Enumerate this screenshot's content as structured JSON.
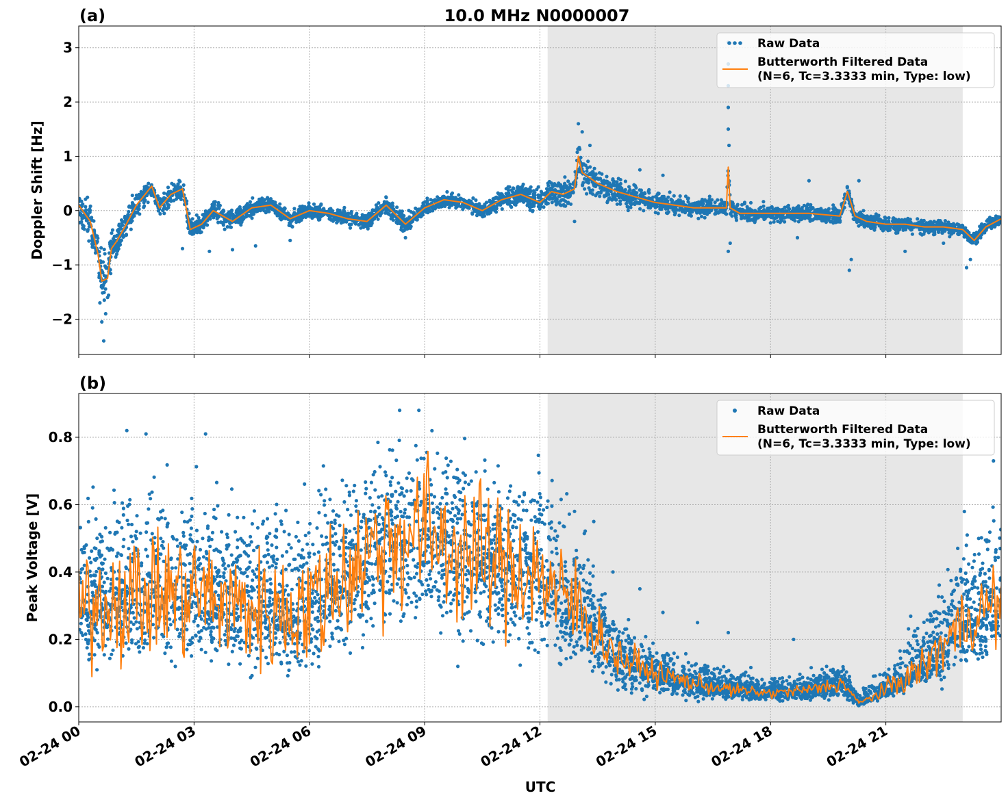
{
  "figure": {
    "title": "10.0 MHz N0000007",
    "xlabel": "UTC"
  },
  "chart_data": [
    {
      "type": "scatter",
      "panel_label": "(a)",
      "ylabel": "Doppler Shift [Hz]",
      "ylim": [
        -2.65,
        3.4
      ],
      "yticks": [
        -2,
        -1,
        0,
        1,
        2,
        3
      ],
      "ytick_labels": [
        "−2",
        "−1",
        "0",
        "1",
        "2",
        "3"
      ],
      "xlim_hours": [
        0,
        24
      ],
      "xtick_labels": [],
      "shaded_interval_hours": [
        12.2,
        23.0
      ],
      "grid": true,
      "legend_position": "upper-right",
      "legend": [
        "Raw Data",
        "Butterworth Filtered Data",
        "(N=6, Tc=3.3333 min, Type: low)"
      ],
      "series": [
        {
          "name": "Raw Data",
          "kind": "scatter",
          "color": "#1f77b4",
          "spread_hz": [
            [
              0,
              0.35
            ],
            [
              0.5,
              0.5
            ],
            [
              0.7,
              0.6
            ],
            [
              1,
              0.4
            ],
            [
              1.5,
              0.25
            ],
            [
              2,
              0.22
            ],
            [
              3,
              0.25
            ],
            [
              4,
              0.2
            ],
            [
              6,
              0.15
            ],
            [
              8,
              0.18
            ],
            [
              10,
              0.15
            ],
            [
              12,
              0.25
            ],
            [
              13,
              0.35
            ],
            [
              14,
              0.3
            ],
            [
              15,
              0.22
            ],
            [
              17,
              0.18
            ],
            [
              20,
              0.18
            ],
            [
              22,
              0.17
            ],
            [
              24,
              0.15
            ]
          ],
          "outliers": [
            [
              0.65,
              -2.4
            ],
            [
              0.6,
              -2.05
            ],
            [
              0.7,
              -1.9
            ],
            [
              0.55,
              -1.7
            ],
            [
              0.75,
              -1.6
            ],
            [
              2.7,
              -0.7
            ],
            [
              3.4,
              -0.75
            ],
            [
              4.0,
              -0.72
            ],
            [
              4.6,
              -0.65
            ],
            [
              5.5,
              -0.55
            ],
            [
              8.5,
              -0.5
            ],
            [
              12.9,
              -0.2
            ],
            [
              13.0,
              1.6
            ],
            [
              13.1,
              1.45
            ],
            [
              13.3,
              1.2
            ],
            [
              16.9,
              3.1
            ],
            [
              16.9,
              2.7
            ],
            [
              16.9,
              2.3
            ],
            [
              16.9,
              1.9
            ],
            [
              16.9,
              1.5
            ],
            [
              16.92,
              1.2
            ],
            [
              16.9,
              -0.75
            ],
            [
              16.95,
              -0.6
            ],
            [
              18.7,
              -0.5
            ],
            [
              20.05,
              -1.1
            ],
            [
              20.1,
              -0.9
            ],
            [
              20.3,
              0.55
            ],
            [
              21.5,
              -0.75
            ],
            [
              22.5,
              -0.6
            ],
            [
              23.1,
              -1.05
            ],
            [
              23.2,
              -0.9
            ],
            [
              15.2,
              0.65
            ],
            [
              14.6,
              0.75
            ],
            [
              19.0,
              0.55
            ]
          ]
        },
        {
          "name": "Butterworth Filtered Data",
          "kind": "line",
          "color": "#ff7f0e",
          "x_hours": [
            0,
            0.3,
            0.5,
            0.6,
            0.75,
            0.85,
            1.0,
            1.2,
            1.5,
            1.9,
            2.1,
            2.4,
            2.7,
            2.9,
            3.2,
            3.5,
            4.0,
            4.5,
            5.0,
            5.5,
            6.0,
            6.5,
            7.0,
            7.5,
            8.0,
            8.5,
            9.0,
            9.5,
            10.0,
            10.5,
            11.0,
            11.5,
            12.0,
            12.3,
            12.6,
            12.9,
            13.0,
            13.1,
            13.3,
            13.5,
            14.0,
            14.5,
            15.0,
            15.5,
            16.0,
            16.5,
            16.85,
            16.9,
            16.95,
            17.2,
            18.0,
            19.0,
            19.8,
            20.0,
            20.2,
            20.5,
            21.0,
            21.5,
            22.0,
            22.5,
            23.0,
            23.3,
            23.6,
            24.0
          ],
          "y_hz": [
            0.1,
            -0.2,
            -0.8,
            -1.3,
            -1.25,
            -0.7,
            -0.55,
            -0.3,
            0.1,
            0.45,
            0.05,
            0.3,
            0.4,
            -0.35,
            -0.25,
            0.0,
            -0.2,
            0.05,
            0.1,
            -0.15,
            0.0,
            -0.05,
            -0.15,
            -0.2,
            0.1,
            -0.25,
            0.05,
            0.2,
            0.15,
            0.0,
            0.2,
            0.3,
            0.15,
            0.35,
            0.3,
            0.4,
            1.0,
            0.7,
            0.6,
            0.5,
            0.35,
            0.25,
            0.15,
            0.1,
            0.05,
            0.05,
            0.05,
            0.8,
            0.05,
            -0.05,
            -0.05,
            -0.05,
            -0.1,
            0.35,
            -0.1,
            -0.2,
            -0.25,
            -0.25,
            -0.3,
            -0.3,
            -0.35,
            -0.55,
            -0.3,
            -0.15
          ]
        }
      ]
    },
    {
      "type": "scatter",
      "panel_label": "(b)",
      "ylabel": "Peak Voltage [V]",
      "ylim": [
        -0.045,
        0.93
      ],
      "yticks": [
        0.0,
        0.2,
        0.4,
        0.6,
        0.8
      ],
      "ytick_labels": [
        "0.0",
        "0.2",
        "0.4",
        "0.6",
        "0.8"
      ],
      "xlim_hours": [
        0,
        24
      ],
      "xticks_hours": [
        0,
        3,
        6,
        9,
        12,
        15,
        18,
        21
      ],
      "xtick_labels": [
        "02-24 00",
        "02-24 03",
        "02-24 06",
        "02-24 09",
        "02-24 12",
        "02-24 15",
        "02-24 18",
        "02-24 21"
      ],
      "shaded_interval_hours": [
        12.2,
        23.0
      ],
      "grid": true,
      "legend_position": "upper-right",
      "legend": [
        "Raw Data",
        "Butterworth Filtered Data",
        "(N=6, Tc=3.3333 min, Type: low)"
      ],
      "series": [
        {
          "name": "Raw Data",
          "kind": "scatter",
          "color": "#1f77b4",
          "envelope_v": [
            [
              0,
              0.1,
              0.7
            ],
            [
              1,
              0.06,
              0.78
            ],
            [
              2,
              0.08,
              0.76
            ],
            [
              3,
              0.07,
              0.78
            ],
            [
              4,
              0.06,
              0.72
            ],
            [
              5,
              0.05,
              0.72
            ],
            [
              6,
              0.05,
              0.72
            ],
            [
              7,
              0.1,
              0.8
            ],
            [
              8,
              0.12,
              0.86
            ],
            [
              9,
              0.12,
              0.86
            ],
            [
              10,
              0.12,
              0.85
            ],
            [
              11,
              0.1,
              0.8
            ],
            [
              12,
              0.08,
              0.78
            ],
            [
              12.5,
              0.06,
              0.7
            ],
            [
              13,
              0.04,
              0.65
            ],
            [
              13.5,
              0.03,
              0.45
            ],
            [
              14,
              0.02,
              0.3
            ],
            [
              15,
              0.02,
              0.22
            ],
            [
              16,
              0.01,
              0.17
            ],
            [
              17,
              0.01,
              0.13
            ],
            [
              18,
              0.01,
              0.12
            ],
            [
              19,
              0.01,
              0.12
            ],
            [
              19.9,
              0.01,
              0.14
            ],
            [
              20.3,
              0.0,
              0.05
            ],
            [
              21,
              0.02,
              0.14
            ],
            [
              22,
              0.04,
              0.35
            ],
            [
              23,
              0.06,
              0.6
            ],
            [
              24,
              0.08,
              0.72
            ]
          ],
          "outliers": [
            [
              8.35,
              0.88
            ],
            [
              8.85,
              0.88
            ],
            [
              1.25,
              0.82
            ],
            [
              1.75,
              0.81
            ],
            [
              3.3,
              0.81
            ],
            [
              12.9,
              0.58
            ],
            [
              13.4,
              0.55
            ],
            [
              13.9,
              0.4
            ],
            [
              14.6,
              0.35
            ],
            [
              15.2,
              0.28
            ],
            [
              16.1,
              0.25
            ],
            [
              16.9,
              0.22
            ],
            [
              18.6,
              0.2
            ],
            [
              23.8,
              0.73
            ]
          ]
        },
        {
          "name": "Butterworth Filtered Data",
          "kind": "line",
          "color": "#ff7f0e",
          "trend_v": [
            [
              0,
              0.3
            ],
            [
              1,
              0.32
            ],
            [
              2,
              0.33
            ],
            [
              3,
              0.34
            ],
            [
              4,
              0.3
            ],
            [
              5,
              0.28
            ],
            [
              6,
              0.3
            ],
            [
              7,
              0.4
            ],
            [
              8,
              0.5
            ],
            [
              9,
              0.52
            ],
            [
              10,
              0.46
            ],
            [
              11,
              0.42
            ],
            [
              12,
              0.4
            ],
            [
              12.5,
              0.32
            ],
            [
              13,
              0.3
            ],
            [
              13.5,
              0.22
            ],
            [
              14,
              0.15
            ],
            [
              15,
              0.1
            ],
            [
              16,
              0.07
            ],
            [
              17,
              0.05
            ],
            [
              18,
              0.04
            ],
            [
              19,
              0.05
            ],
            [
              19.9,
              0.07
            ],
            [
              20.3,
              0.01
            ],
            [
              21,
              0.05
            ],
            [
              22,
              0.12
            ],
            [
              23,
              0.25
            ],
            [
              24,
              0.32
            ]
          ],
          "jitter_v": [
            [
              0,
              0.12
            ],
            [
              1,
              0.14
            ],
            [
              2,
              0.15
            ],
            [
              3,
              0.15
            ],
            [
              4,
              0.14
            ],
            [
              5,
              0.14
            ],
            [
              6,
              0.15
            ],
            [
              7,
              0.17
            ],
            [
              8,
              0.18
            ],
            [
              9,
              0.18
            ],
            [
              10,
              0.17
            ],
            [
              11,
              0.16
            ],
            [
              12,
              0.15
            ],
            [
              12.5,
              0.13
            ],
            [
              13,
              0.12
            ],
            [
              13.5,
              0.07
            ],
            [
              14,
              0.05
            ],
            [
              15,
              0.03
            ],
            [
              16,
              0.02
            ],
            [
              17,
              0.015
            ],
            [
              18,
              0.012
            ],
            [
              19,
              0.015
            ],
            [
              19.9,
              0.02
            ],
            [
              20.3,
              0.005
            ],
            [
              21,
              0.02
            ],
            [
              22,
              0.05
            ],
            [
              23,
              0.08
            ],
            [
              24,
              0.1
            ]
          ]
        }
      ]
    }
  ]
}
